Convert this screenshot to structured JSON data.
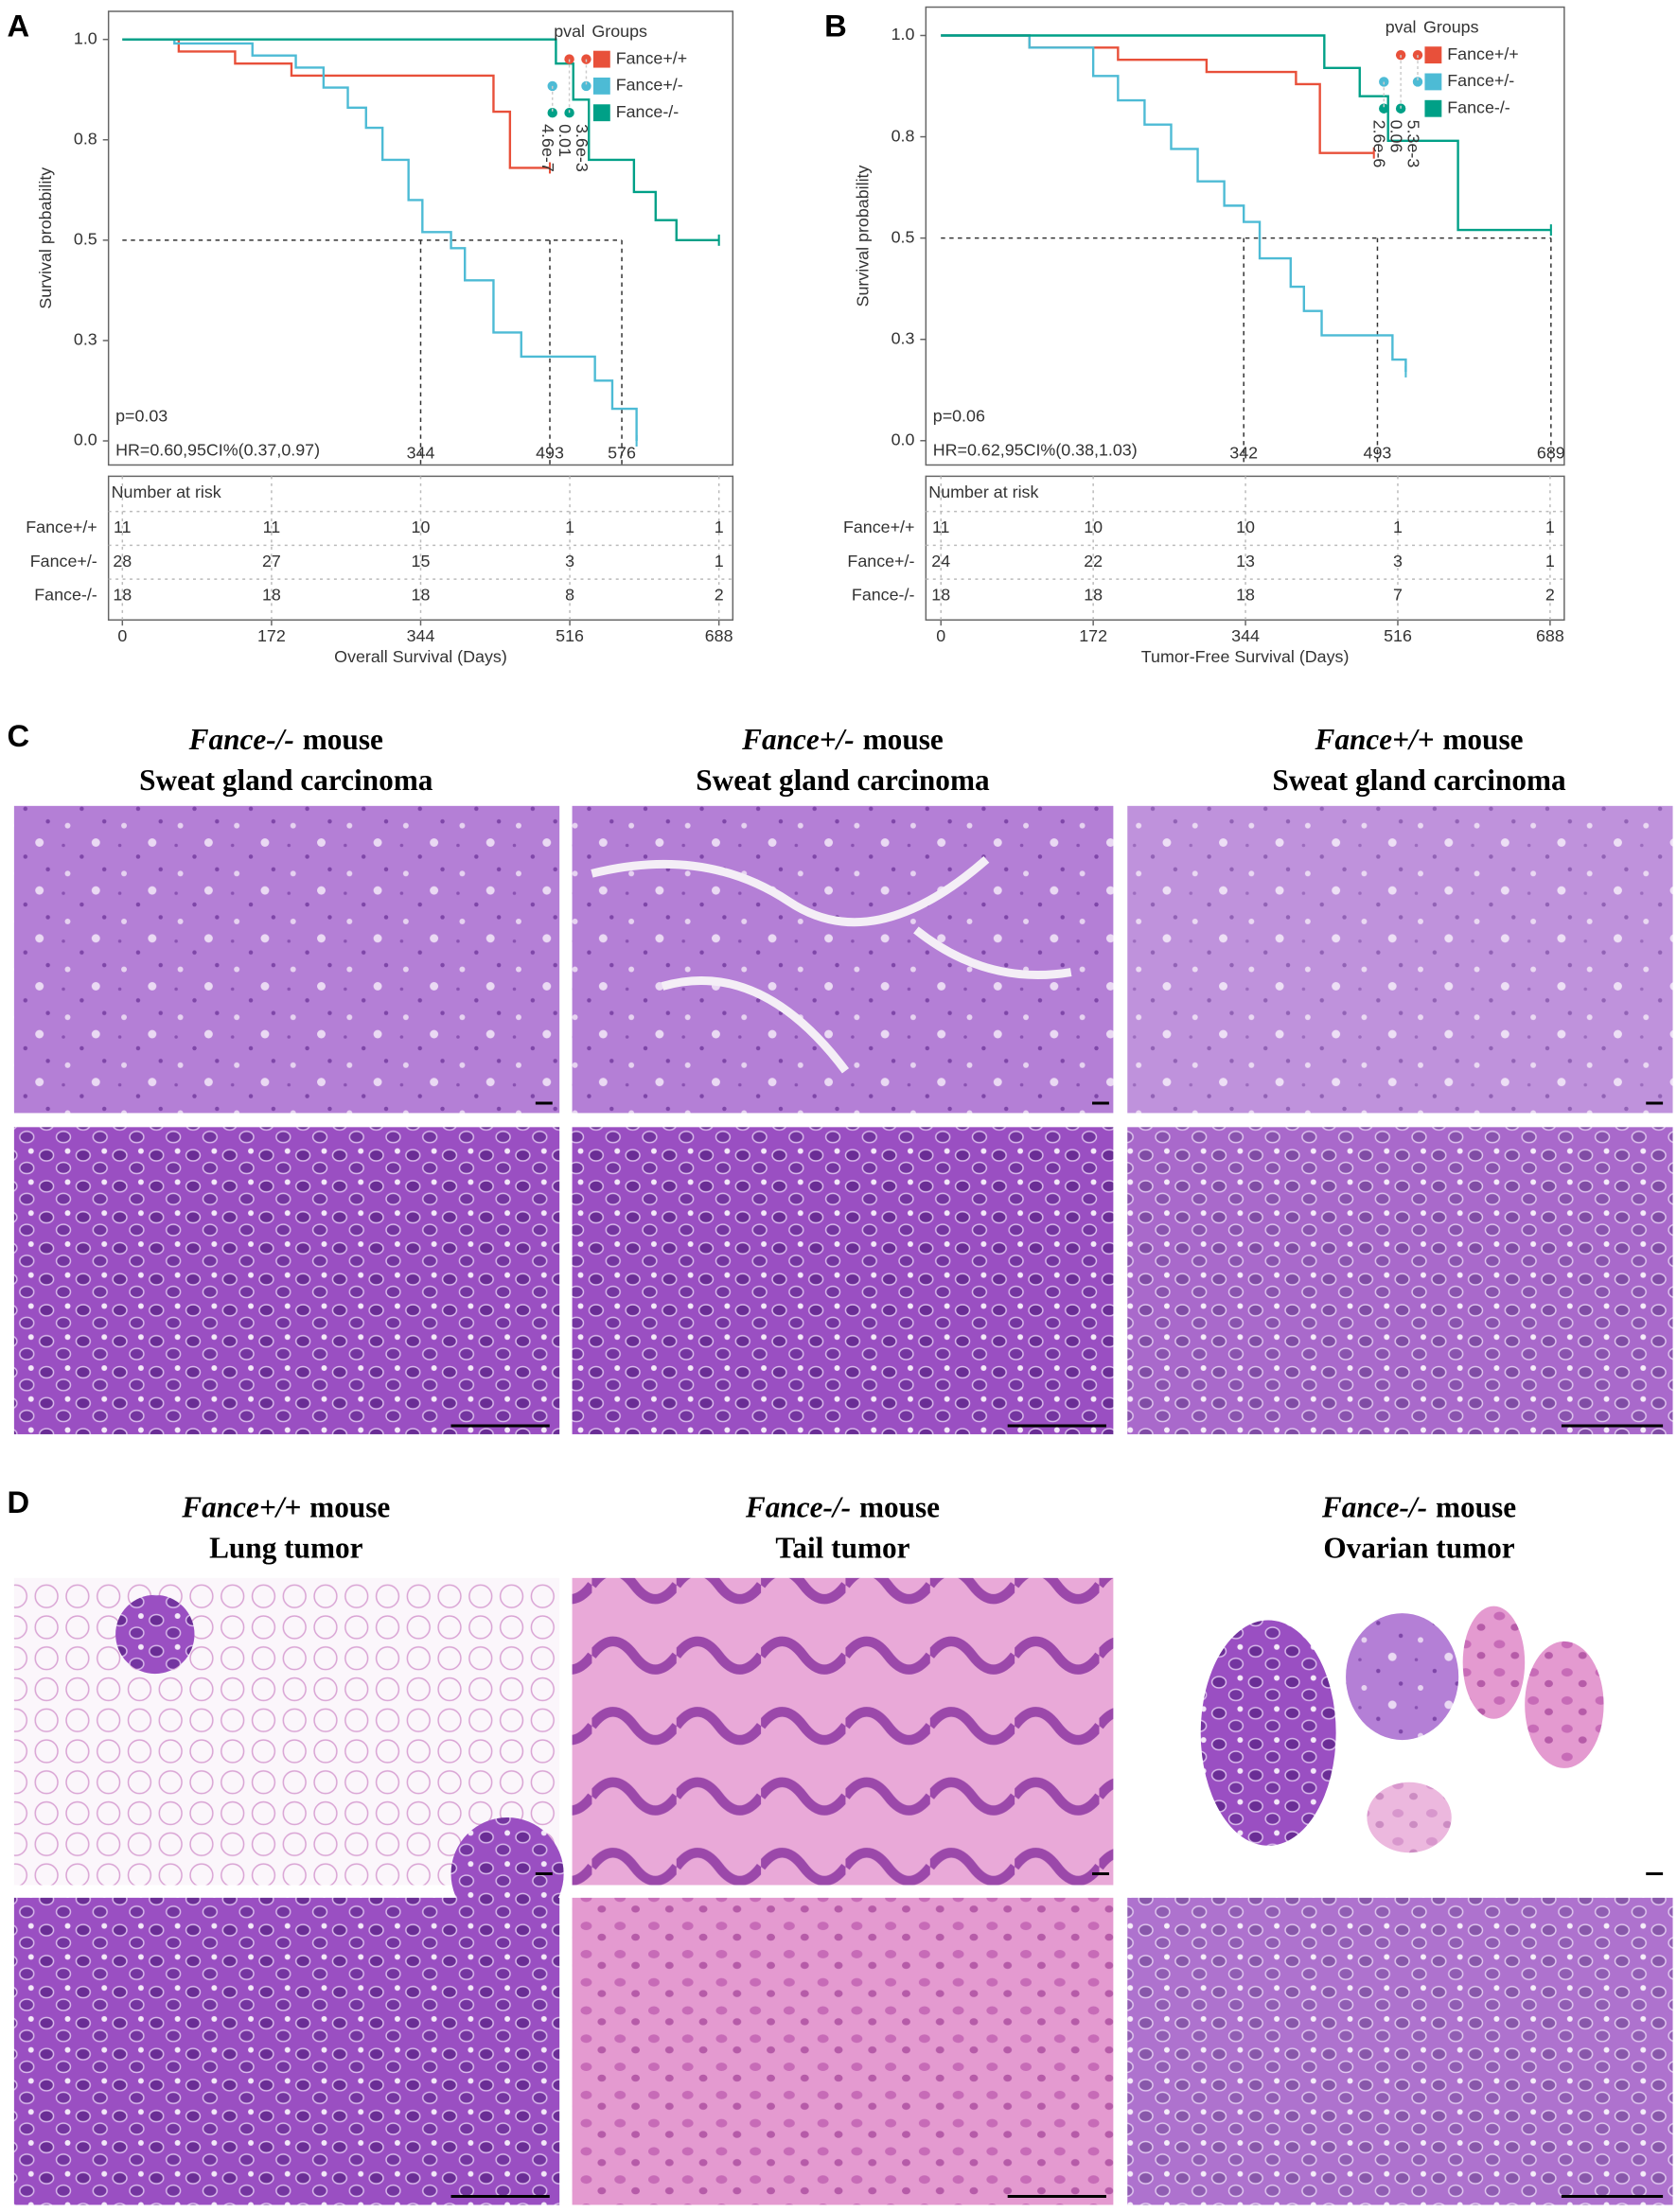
{
  "panel_letters": [
    "A",
    "B",
    "C",
    "D"
  ],
  "chart_data": [
    {
      "type": "km",
      "xlabel": "Overall Survival (Days)",
      "ylabel": "Survival probability",
      "xlim": [
        -16,
        704
      ],
      "ylim": [
        -0.06,
        1.07
      ],
      "xticks": [
        0,
        172,
        344,
        516,
        688
      ],
      "yticks": [
        {
          "value": 0,
          "label": "0.0"
        },
        {
          "value": 0.25,
          "label": "0.3"
        },
        0.5,
        {
          "value": 0.75,
          "label": "0.8"
        },
        {
          "value": 1,
          "label": "1.0"
        }
      ],
      "medians": [
        344,
        493,
        576
      ],
      "annotations": [
        "p=0.03",
        "HR=0.60,95CI%(0.37,0.97)"
      ],
      "pval_title": "pval",
      "legend_title": "Groups",
      "pvals": [
        "4.6e-7",
        "0.01",
        "3.6e-3"
      ],
      "risk_title": "Number at risk",
      "series": [
        {
          "name": "Fance+/+",
          "color": "#e8503a",
          "x": [
            0,
            65,
            130,
            195,
            428,
            447,
            493
          ],
          "values": [
            1,
            0.97,
            0.94,
            0.91,
            0.82,
            0.68,
            0.68
          ],
          "at_risk": [
            11,
            11,
            10,
            1,
            1
          ]
        },
        {
          "name": "Fance+/-",
          "color": "#4dbbd5",
          "x": [
            0,
            60,
            150,
            200,
            232,
            260,
            281,
            300,
            330,
            346,
            379,
            395,
            428,
            460,
            525,
            545,
            565,
            593
          ],
          "values": [
            1,
            0.99,
            0.96,
            0.93,
            0.88,
            0.83,
            0.78,
            0.7,
            0.6,
            0.52,
            0.48,
            0.4,
            0.27,
            0.21,
            0.21,
            0.15,
            0.08,
            0
          ],
          "at_risk": [
            28,
            27,
            15,
            3,
            1
          ]
        },
        {
          "name": "Fance-/-",
          "color": "#00a087",
          "x": [
            0,
            500,
            520,
            538,
            560,
            590,
            615,
            639,
            688
          ],
          "values": [
            1,
            0.94,
            0.85,
            0.7,
            0.7,
            0.62,
            0.55,
            0.5,
            0.5
          ],
          "at_risk": [
            18,
            18,
            18,
            8,
            2
          ]
        }
      ]
    },
    {
      "type": "km",
      "xlabel": "Tumor-Free Survival (Days)",
      "ylabel": "Survival probability",
      "xlim": [
        -17,
        704
      ],
      "ylim": [
        -0.06,
        1.07
      ],
      "xticks": [
        0,
        172,
        344,
        516,
        688
      ],
      "yticks": [
        {
          "value": 0,
          "label": "0.0"
        },
        {
          "value": 0.25,
          "label": "0.3"
        },
        0.5,
        {
          "value": 0.75,
          "label": "0.8"
        },
        {
          "value": 1,
          "label": "1.0"
        }
      ],
      "medians": [
        342,
        493,
        689
      ],
      "annotations": [
        "p=0.06",
        "HR=0.62,95CI%(0.38,1.03)"
      ],
      "pval_title": "pval",
      "legend_title": "Groups",
      "pvals": [
        "2.6e-6",
        "0.06",
        "5.3e-3"
      ],
      "risk_title": "Number at risk",
      "series": [
        {
          "name": "Fance+/+",
          "color": "#e8503a",
          "x": [
            0,
            100,
            200,
            300,
            401,
            428,
            489
          ],
          "values": [
            1,
            0.97,
            0.94,
            0.91,
            0.88,
            0.71,
            0.71
          ],
          "at_risk": [
            11,
            10,
            10,
            1,
            1
          ]
        },
        {
          "name": "Fance+/-",
          "color": "#4dbbd5",
          "x": [
            0,
            100,
            172,
            200,
            230,
            260,
            290,
            320,
            342,
            360,
            380,
            395,
            410,
            430,
            489,
            510,
            525
          ],
          "values": [
            1,
            0.97,
            0.9,
            0.84,
            0.78,
            0.72,
            0.64,
            0.58,
            0.54,
            0.45,
            0.45,
            0.38,
            0.32,
            0.26,
            0.26,
            0.2,
            0.17
          ],
          "at_risk": [
            24,
            22,
            13,
            3,
            1
          ]
        },
        {
          "name": "Fance-/-",
          "color": "#00a087",
          "x": [
            0,
            433,
            473,
            505,
            584,
            689
          ],
          "values": [
            1,
            0.92,
            0.85,
            0.74,
            0.52,
            0.52
          ],
          "at_risk": [
            18,
            18,
            18,
            7,
            2
          ]
        }
      ]
    }
  ],
  "histology": {
    "C": [
      {
        "genotype": "Fance-/-",
        "word": "mouse",
        "tissue": "Sweat gland carcinoma"
      },
      {
        "genotype": "Fance+/-",
        "word": "mouse",
        "tissue": "Sweat gland carcinoma"
      },
      {
        "genotype": "Fance+/+",
        "word": "mouse",
        "tissue": "Sweat gland carcinoma"
      }
    ],
    "D": [
      {
        "genotype": "Fance+/+",
        "word": "mouse",
        "tissue": "Lung tumor"
      },
      {
        "genotype": "Fance-/-",
        "word": "mouse",
        "tissue": "Tail tumor"
      },
      {
        "genotype": "Fance-/-",
        "word": "mouse",
        "tissue": "Ovarian tumor"
      }
    ]
  }
}
